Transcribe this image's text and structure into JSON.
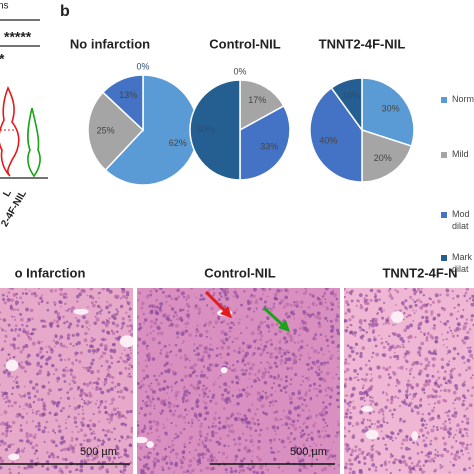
{
  "panel_a": {
    "significance": [
      "ns",
      "*****",
      "*"
    ],
    "x_labels": [
      "L",
      "2-4F-NIL"
    ]
  },
  "panel_b": {
    "label": "b"
  },
  "chart_data": [
    {
      "type": "pie",
      "title": "No infarction",
      "categories": [
        "Norm",
        "Mild",
        "Mod dilat",
        "Mark dilat"
      ],
      "values": [
        62,
        25,
        13,
        0
      ],
      "value_labels": [
        "62%",
        "25%",
        "13%",
        "0%"
      ],
      "colors": [
        "#5b9bd5",
        "#a5a5a5",
        "#4472c4",
        "#255e91"
      ]
    },
    {
      "type": "pie",
      "title": "Control-NIL",
      "categories": [
        "Norm",
        "Mild",
        "Mod dilat",
        "Mark dilat"
      ],
      "values": [
        0,
        17,
        33,
        50
      ],
      "value_labels": [
        "0%",
        "17%",
        "33%",
        "50%"
      ],
      "colors": [
        "#5b9bd5",
        "#a5a5a5",
        "#4472c4",
        "#255e91"
      ]
    },
    {
      "type": "pie",
      "title": "TNNT2-4F-NIL",
      "categories": [
        "Norm",
        "Mild",
        "Mod dilat",
        "Mark dilat"
      ],
      "values": [
        30,
        20,
        40,
        10
      ],
      "value_labels": [
        "30%",
        "20%",
        "40%",
        "10%"
      ],
      "colors": [
        "#5b9bd5",
        "#a5a5a5",
        "#4472c4",
        "#255e91"
      ]
    }
  ],
  "histology": {
    "titles": [
      "o Infarction",
      "Control-NIL",
      "TNNT2-4F-N"
    ],
    "scale_labels": [
      "500 µm",
      "500 µm"
    ]
  }
}
